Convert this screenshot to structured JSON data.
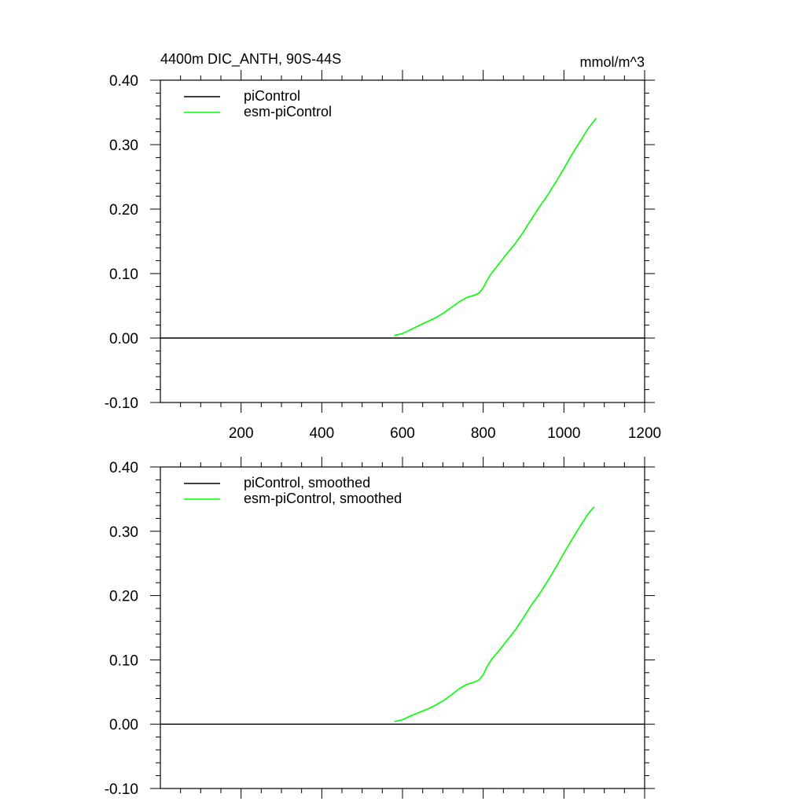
{
  "chart_data": [
    {
      "type": "line",
      "title": "4400m DIC_ANTH, 90S-44S",
      "units": "mmol/m^3",
      "xlim": [
        0,
        1200
      ],
      "ylim": [
        -0.1,
        0.4
      ],
      "x_ticks": [
        200,
        400,
        600,
        800,
        1000,
        1200
      ],
      "x_tick_labels": [
        "200",
        "400",
        "600",
        "800",
        "1000",
        "1200"
      ],
      "y_ticks": [
        -0.1,
        0.0,
        0.1,
        0.2,
        0.3,
        0.4
      ],
      "y_tick_labels": [
        "-0.10",
        "0.00",
        "0.10",
        "0.20",
        "0.30",
        "0.40"
      ],
      "legend_position": "top-left",
      "series": [
        {
          "name": "piControl",
          "color": "#000000",
          "x": [
            0,
            1200
          ],
          "y": [
            0.0,
            0.0
          ]
        },
        {
          "name": "esm-piControl",
          "color": "#00ff00",
          "x": [
            580,
            600,
            620,
            640,
            660,
            680,
            700,
            720,
            740,
            760,
            780,
            790,
            800,
            810,
            820,
            840,
            860,
            880,
            900,
            920,
            940,
            960,
            980,
            1000,
            1020,
            1040,
            1060,
            1080
          ],
          "y": [
            0.004,
            0.007,
            0.013,
            0.019,
            0.025,
            0.031,
            0.038,
            0.047,
            0.056,
            0.063,
            0.067,
            0.07,
            0.078,
            0.09,
            0.1,
            0.116,
            0.132,
            0.147,
            0.165,
            0.185,
            0.204,
            0.222,
            0.242,
            0.263,
            0.285,
            0.305,
            0.325,
            0.341
          ]
        }
      ]
    },
    {
      "type": "line",
      "xlim": [
        0,
        1200
      ],
      "ylim": [
        -0.1,
        0.4
      ],
      "y_ticks": [
        -0.1,
        0.0,
        0.1,
        0.2,
        0.3,
        0.4
      ],
      "y_tick_labels": [
        "-0.10",
        "0.00",
        "0.10",
        "0.20",
        "0.30",
        "0.40"
      ],
      "legend_position": "top-left",
      "series": [
        {
          "name": "piControl, smoothed",
          "color": "#000000",
          "x": [
            0,
            1200
          ],
          "y": [
            0.0,
            0.0
          ]
        },
        {
          "name": "esm-piControl, smoothed",
          "color": "#00ff00",
          "x": [
            580,
            600,
            620,
            640,
            660,
            680,
            700,
            720,
            740,
            760,
            780,
            790,
            800,
            810,
            820,
            840,
            860,
            880,
            900,
            920,
            940,
            960,
            980,
            1000,
            1020,
            1040,
            1060,
            1075
          ],
          "y": [
            0.004,
            0.007,
            0.013,
            0.018,
            0.023,
            0.029,
            0.036,
            0.045,
            0.055,
            0.062,
            0.066,
            0.069,
            0.077,
            0.09,
            0.1,
            0.115,
            0.131,
            0.147,
            0.166,
            0.186,
            0.203,
            0.223,
            0.244,
            0.266,
            0.287,
            0.308,
            0.327,
            0.338
          ]
        }
      ]
    }
  ]
}
